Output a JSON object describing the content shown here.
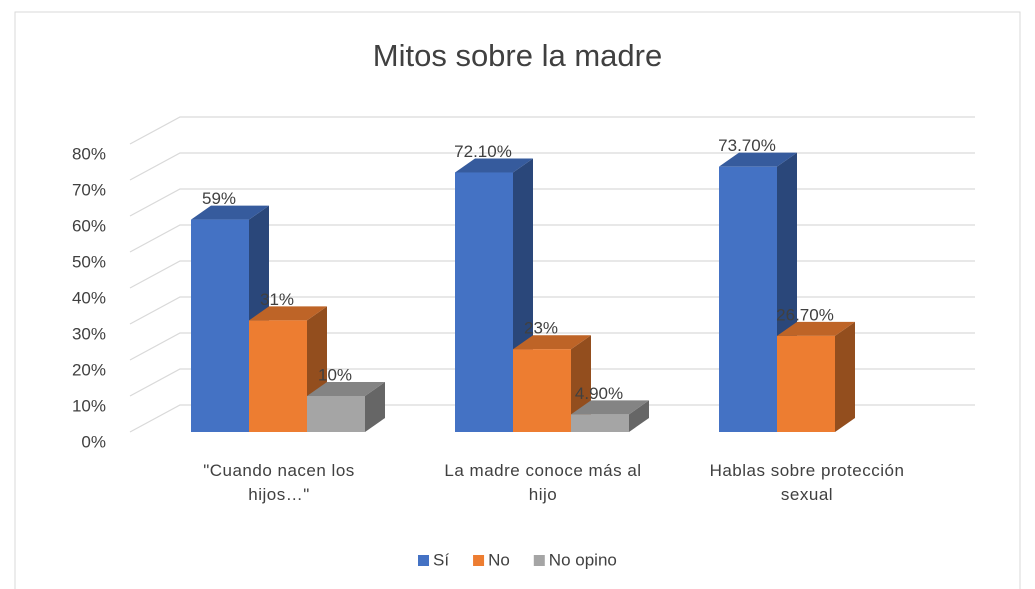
{
  "chart_data": {
    "type": "bar3d",
    "title": "Mitos sobre la madre",
    "categories": [
      "\"Cuando nacen los hijos…\"",
      "La madre conoce más al hijo",
      "Hablas sobre protección sexual"
    ],
    "series": [
      {
        "name": "Sí",
        "color": "#4472c4",
        "values": [
          59,
          72.1,
          73.7
        ],
        "value_labels": [
          "59%",
          "72.10%",
          "73.70%"
        ]
      },
      {
        "name": "No",
        "color": "#ed7d31",
        "values": [
          31,
          23,
          26.7
        ],
        "value_labels": [
          "31%",
          "23%",
          "26.70%"
        ]
      },
      {
        "name": "No opino",
        "color": "#a5a5a5",
        "values": [
          10,
          4.9,
          null
        ],
        "value_labels": [
          "10%",
          "4.90%",
          null
        ]
      }
    ],
    "ylim": [
      0,
      80
    ],
    "yticks": [
      {
        "value": 0,
        "label": "0%"
      },
      {
        "value": 10,
        "label": "10%"
      },
      {
        "value": 20,
        "label": "20%"
      },
      {
        "value": 30,
        "label": "30%"
      },
      {
        "value": 40,
        "label": "40%"
      },
      {
        "value": 50,
        "label": "50%"
      },
      {
        "value": 60,
        "label": "60%"
      },
      {
        "value": 70,
        "label": "70%"
      },
      {
        "value": 80,
        "label": "80%"
      }
    ],
    "grid": true,
    "legend": "bottom"
  }
}
